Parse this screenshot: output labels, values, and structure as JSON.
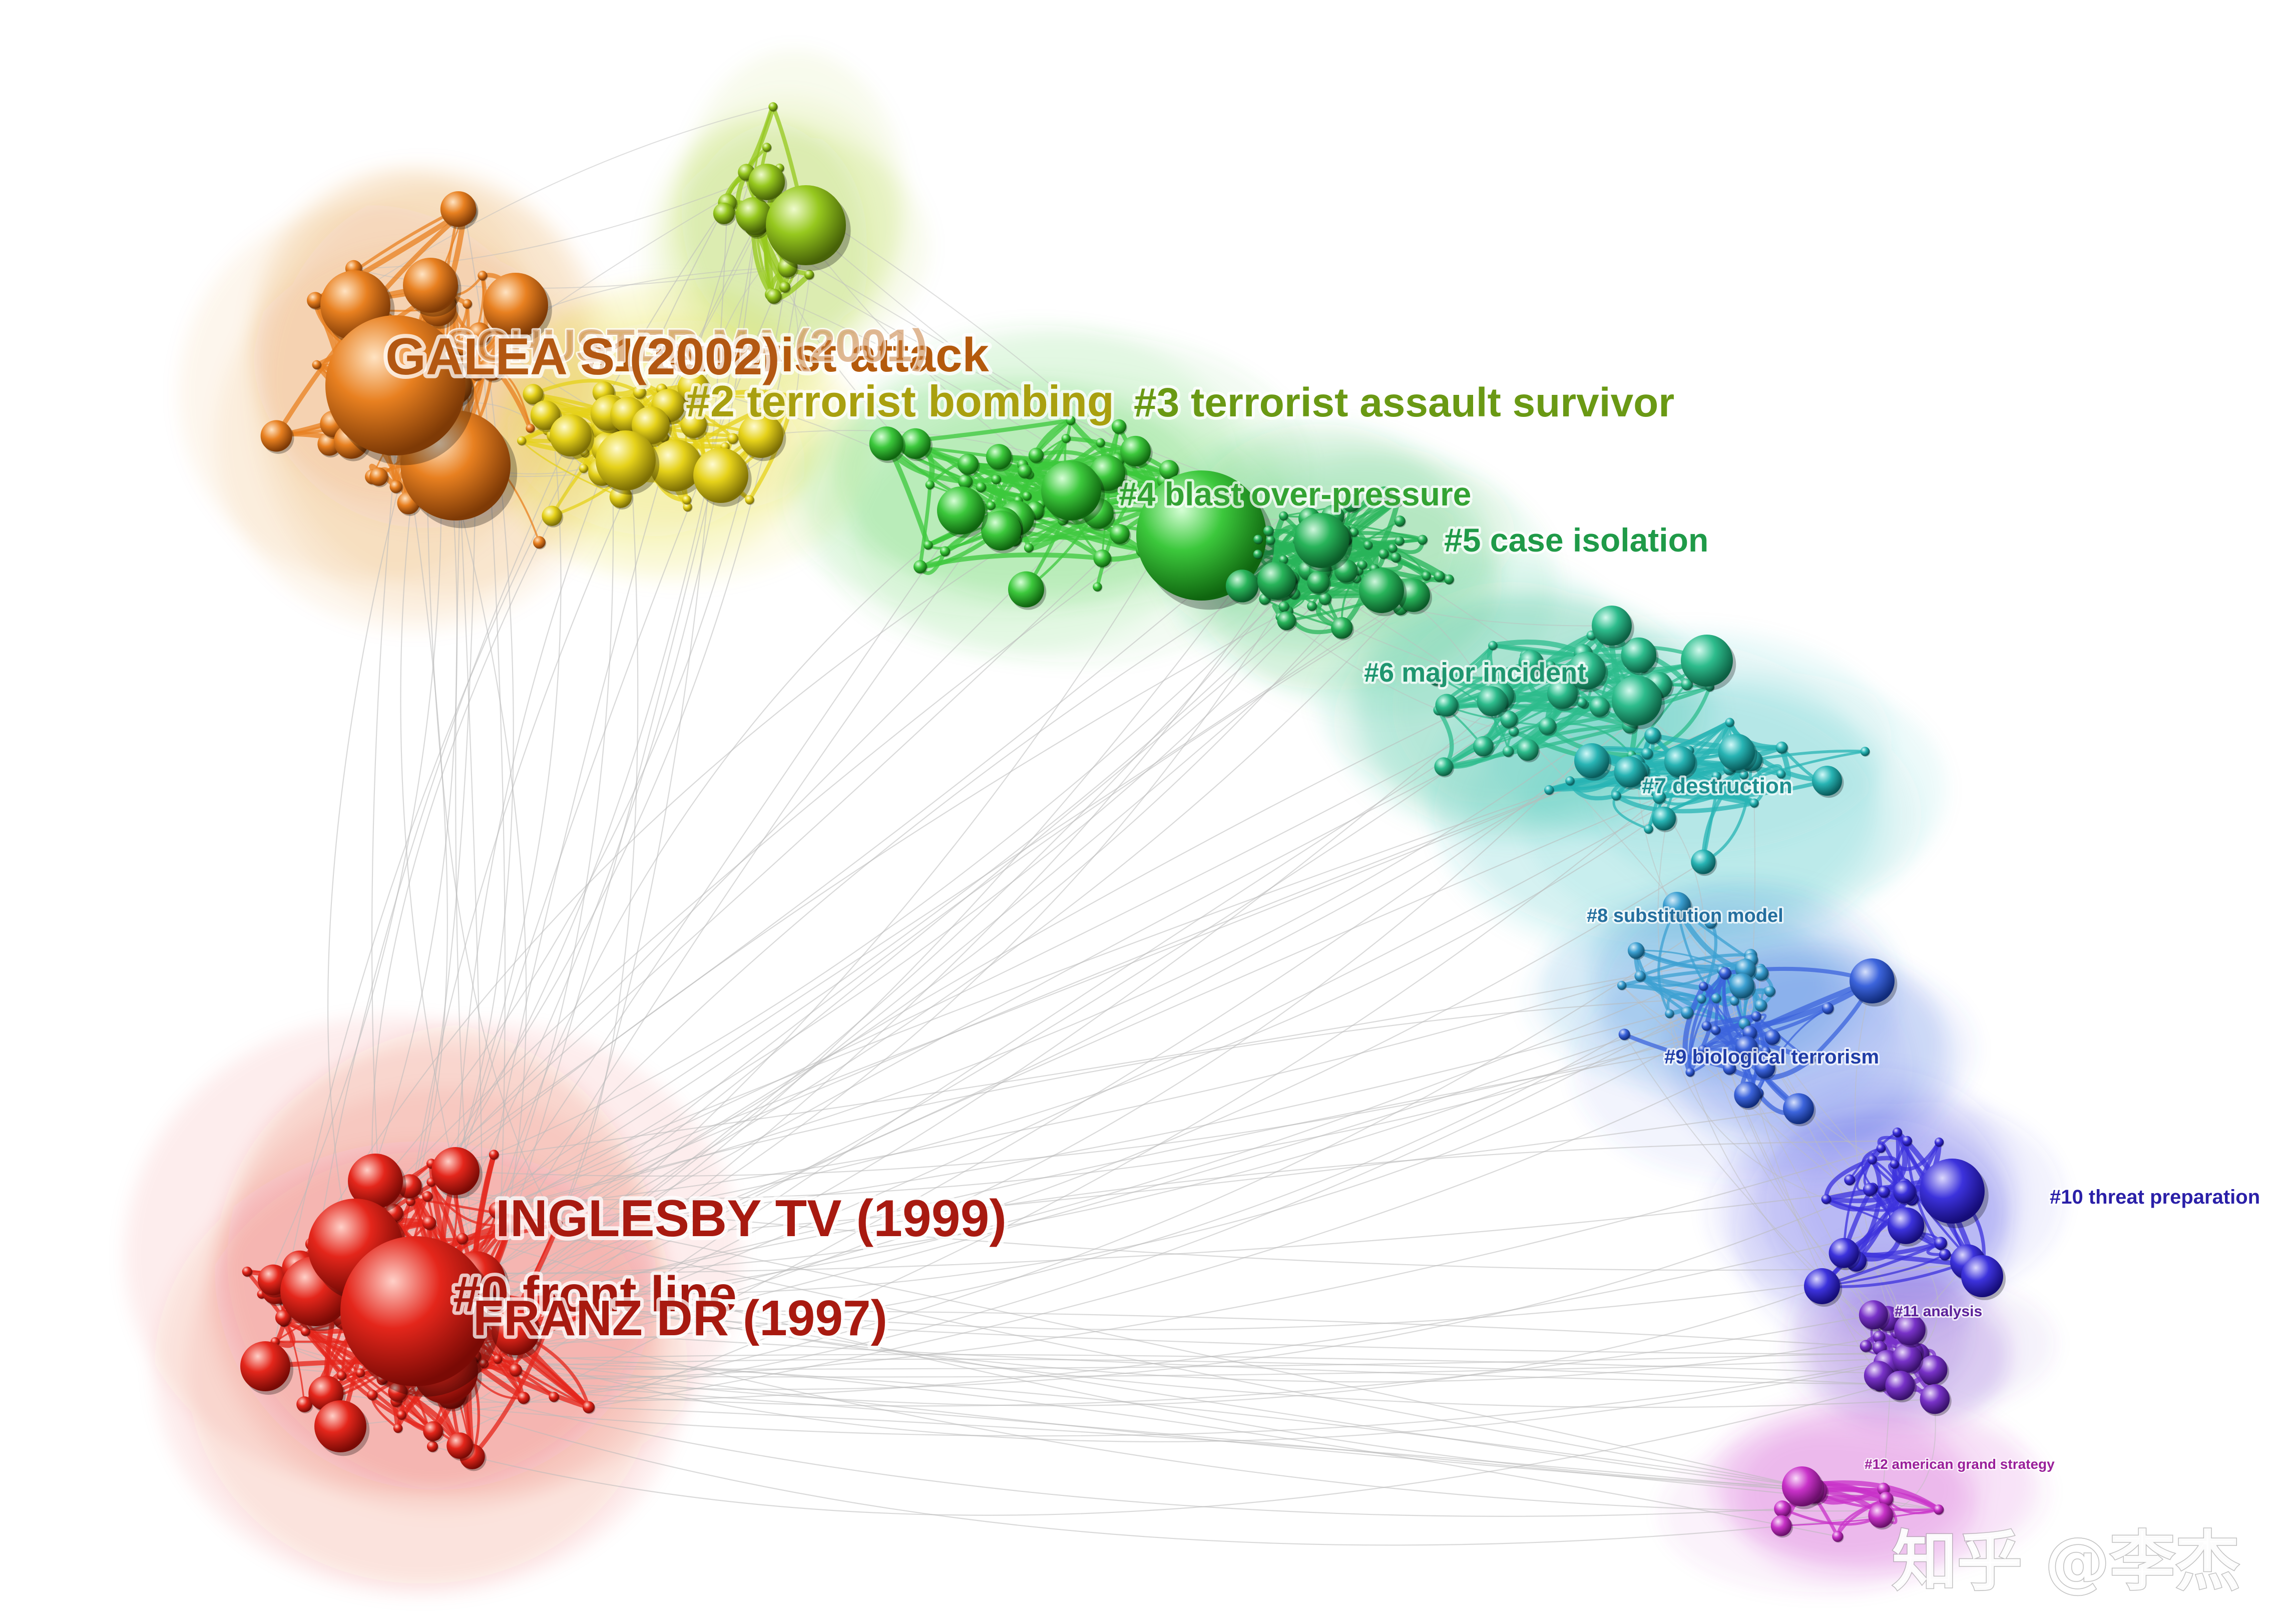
{
  "clusters": [
    {
      "id": "c0",
      "label": "#0 front line",
      "color": "#e4261b"
    },
    {
      "id": "c1",
      "label": "#1 terrorist attack",
      "color": "#e88020"
    },
    {
      "id": "c2",
      "label": "#2 terrorist bombing",
      "color": "#e6d21a"
    },
    {
      "id": "c3",
      "label": "#3 terrorist assault survivor",
      "color": "#96c81e"
    },
    {
      "id": "c4",
      "label": "#4 blast over-pressure",
      "color": "#3cc83c"
    },
    {
      "id": "c5",
      "label": "#5 case isolation",
      "color": "#28b45a"
    },
    {
      "id": "c6",
      "label": "#6 major incident",
      "color": "#2dbc8c"
    },
    {
      "id": "c7",
      "label": "#7 destruction",
      "color": "#28b4b4"
    },
    {
      "id": "c8",
      "label": "#8 substitution model",
      "color": "#3ca0d2"
    },
    {
      "id": "c9",
      "label": "#9 biological terrorism",
      "color": "#3c64dc"
    },
    {
      "id": "c10",
      "label": "#10 threat preparation",
      "color": "#3c32dc"
    },
    {
      "id": "c11",
      "label": "#11 analysis",
      "color": "#7832c8"
    },
    {
      "id": "c12",
      "label": "#12 american grand strategy",
      "color": "#c832c8"
    }
  ],
  "references": [
    {
      "id": "r1",
      "label": "INGLESBY TV (1999)",
      "cluster": "c0"
    },
    {
      "id": "r2",
      "label": "FRANZ DR (1997)",
      "cluster": "c0"
    },
    {
      "id": "r3",
      "label": "GALEA S (2002)",
      "cluster": "c1"
    },
    {
      "id": "r4",
      "label": "SCHUSTER MA (2001)",
      "cluster": "c1"
    }
  ],
  "watermark": "知乎 @李杰"
}
